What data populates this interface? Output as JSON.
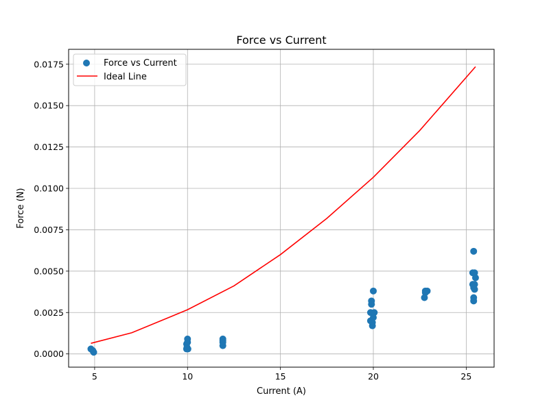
{
  "chart_data": {
    "type": "scatter",
    "title": "Force vs Current",
    "xlabel": "Current (A)",
    "ylabel": "Force (N)",
    "xlim": [
      3.6,
      26.5
    ],
    "ylim": [
      -0.0008,
      0.0184
    ],
    "xticks": [
      5,
      10,
      15,
      20,
      25
    ],
    "xtick_labels": [
      "5",
      "10",
      "15",
      "20",
      "25"
    ],
    "yticks": [
      0.0,
      0.0025,
      0.005,
      0.0075,
      0.01,
      0.0125,
      0.015,
      0.0175
    ],
    "ytick_labels": [
      "0.0000",
      "0.0025",
      "0.0050",
      "0.0075",
      "0.0100",
      "0.0125",
      "0.0150",
      "0.0175"
    ],
    "grid": true,
    "legend_position": "top-left",
    "colors": {
      "scatter": "#1f77b4",
      "line": "#ff0000",
      "grid": "#b0b0b0"
    },
    "series": [
      {
        "name": "Force vs Current",
        "kind": "scatter",
        "x": [
          4.8,
          4.9,
          4.95,
          9.95,
          9.95,
          10.0,
          10.0,
          9.97,
          10.02,
          11.9,
          11.9,
          11.9,
          11.9,
          19.85,
          19.85,
          19.9,
          19.9,
          19.95,
          20.0,
          20.0,
          20.05,
          19.95,
          22.8,
          22.9,
          22.8,
          22.75,
          25.35,
          25.45,
          25.4,
          25.35,
          25.45,
          25.4,
          25.45,
          25.4,
          25.4,
          25.5
        ],
        "y": [
          0.0003,
          0.0002,
          0.0001,
          0.0003,
          0.0006,
          0.0007,
          0.0009,
          0.0004,
          0.0003,
          0.0005,
          0.0007,
          0.0008,
          0.0009,
          0.002,
          0.0025,
          0.003,
          0.0032,
          0.0019,
          0.0038,
          0.0022,
          0.0025,
          0.0017,
          0.0038,
          0.0038,
          0.0037,
          0.0034,
          0.0049,
          0.0049,
          0.0062,
          0.0042,
          0.0042,
          0.004,
          0.0039,
          0.0034,
          0.0032,
          0.0046
        ]
      },
      {
        "name": "Ideal Line",
        "kind": "line",
        "x": [
          4.8,
          7.0,
          10.0,
          12.5,
          15.0,
          17.5,
          20.0,
          22.5,
          25.5
        ],
        "y": [
          0.00064,
          0.00128,
          0.00267,
          0.00411,
          0.006,
          0.00819,
          0.01067,
          0.0135,
          0.01735
        ]
      }
    ]
  }
}
